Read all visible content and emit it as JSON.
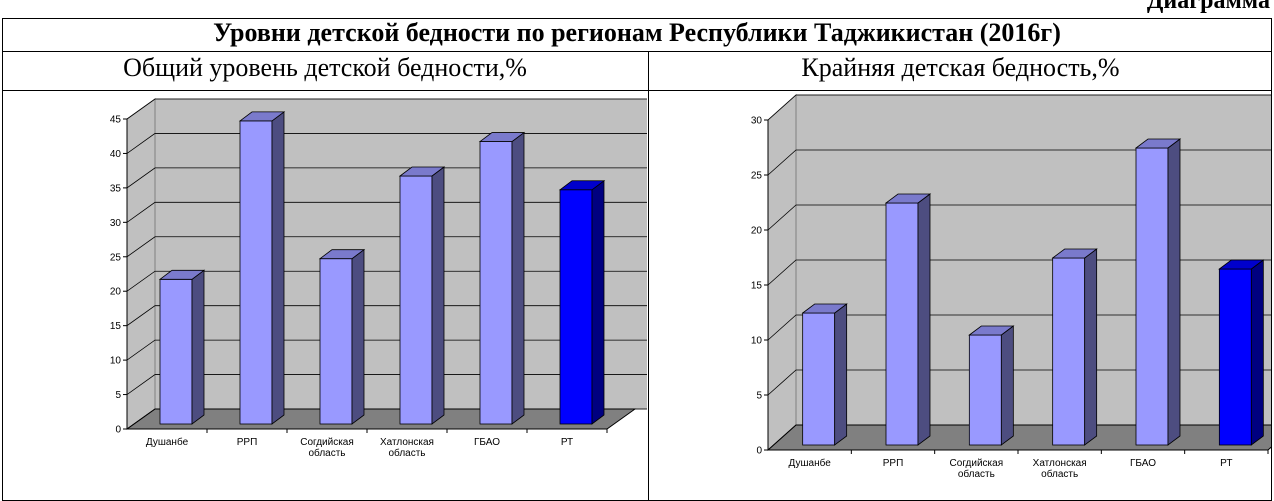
{
  "header": {
    "corner": "Диаграмма",
    "title": "Уровни детской бедности по регионам Республики Таджикистан (2016г)"
  },
  "chart_data": [
    {
      "type": "bar3d",
      "title": "Общий уровень детской бедности,%",
      "categories": [
        "Душанбе",
        "РРП",
        "Согдийская область",
        "Хатлонская область",
        "ГБАО",
        "РТ"
      ],
      "values": [
        21,
        44,
        24,
        36,
        41,
        34
      ],
      "colors": [
        "#9999ff",
        "#9999ff",
        "#9999ff",
        "#9999ff",
        "#9999ff",
        "#0000ff"
      ],
      "ylim": [
        0,
        45
      ],
      "yticks": [
        0,
        5,
        10,
        15,
        20,
        25,
        30,
        35,
        40,
        45
      ],
      "grid": true
    },
    {
      "type": "bar3d",
      "title": "Крайняя детская бедность,%",
      "categories": [
        "Душанбе",
        "РРП",
        "Согдийская область",
        "Хатлонская область",
        "ГБАО",
        "РТ"
      ],
      "values": [
        12,
        22,
        10,
        17,
        27,
        16
      ],
      "colors": [
        "#9999ff",
        "#9999ff",
        "#9999ff",
        "#9999ff",
        "#9999ff",
        "#0000ff"
      ],
      "ylim": [
        0,
        30
      ],
      "yticks": [
        0,
        5,
        10,
        15,
        20,
        25,
        30
      ],
      "grid": true
    }
  ]
}
